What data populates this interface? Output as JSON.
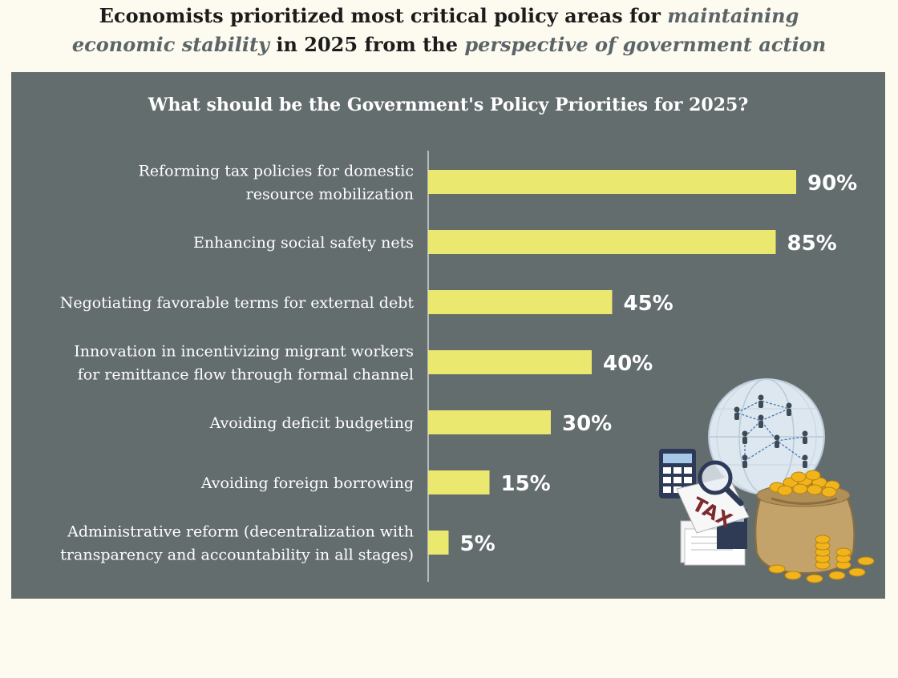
{
  "headline": {
    "line1_plain": "Economists prioritized most critical policy areas for ",
    "line1_accent": "maintaining",
    "line2_accent": "economic stability",
    "line2_plain": " in 2025 from the ",
    "line2_accent2": "perspective of government action"
  },
  "colors": {
    "page_bg": "#fdfaef",
    "panel_bg": "#646d6e",
    "bar": "#ebe870",
    "accent_text": "#5b6568"
  },
  "illustration": {
    "tax_tag_text": "TAX",
    "icons": [
      "globe-network-icon",
      "calculator-icon",
      "magnifier-icon",
      "tax-tag-icon",
      "document-stack-icon",
      "money-bag-icon",
      "gold-coins-icon"
    ]
  },
  "chart_data": {
    "type": "bar",
    "orientation": "horizontal",
    "title": "What should be the Government's Policy Priorities for 2025?",
    "categories": [
      [
        "Reforming tax policies for domestic",
        "resource mobilization"
      ],
      [
        "Enhancing social safety nets"
      ],
      [
        "Negotiating favorable terms for external debt"
      ],
      [
        "Innovation in incentivizing migrant workers",
        "for remittance flow through formal channel"
      ],
      [
        "Avoiding deficit budgeting"
      ],
      [
        "Avoiding foreign borrowing"
      ],
      [
        "Administrative reform (decentralization with",
        "transparency and accountability in all stages)"
      ]
    ],
    "values": [
      90,
      85,
      45,
      40,
      30,
      15,
      5
    ],
    "value_labels": [
      "90%",
      "85%",
      "45%",
      "40%",
      "30%",
      "15%",
      "5%"
    ],
    "xlim": [
      0,
      100
    ],
    "grid": false,
    "legend": "none"
  }
}
